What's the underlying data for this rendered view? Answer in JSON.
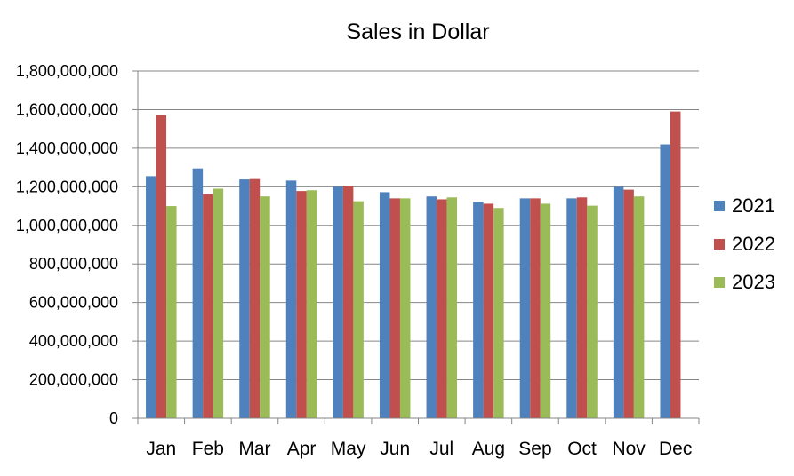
{
  "chart_data": {
    "type": "bar",
    "title": "Sales in Dollar",
    "xlabel": "",
    "ylabel": "",
    "ylim": [
      0,
      1800000000
    ],
    "yticks": [
      0,
      200000000,
      400000000,
      600000000,
      800000000,
      1000000000,
      1200000000,
      1400000000,
      1600000000,
      1800000000
    ],
    "ytick_labels": [
      "0",
      "200,000,000",
      "400,000,000",
      "600,000,000",
      "800,000,000",
      "1,000,000,000",
      "1,200,000,000",
      "1,400,000,000",
      "1,600,000,000",
      "1,800,000,000"
    ],
    "categories": [
      "Jan",
      "Feb",
      "Mar",
      "Apr",
      "May",
      "Jun",
      "Jul",
      "Aug",
      "Sep",
      "Oct",
      "Nov",
      "Dec"
    ],
    "grid": true,
    "legend_position": "right",
    "series": [
      {
        "name": "2021",
        "color": "#4F81BD",
        "values": [
          1255000000,
          1295000000,
          1238000000,
          1232000000,
          1200000000,
          1172000000,
          1150000000,
          1122000000,
          1140000000,
          1140000000,
          1200000000,
          1420000000
        ]
      },
      {
        "name": "2022",
        "color": "#C0504D",
        "values": [
          1572000000,
          1160000000,
          1240000000,
          1178000000,
          1205000000,
          1140000000,
          1135000000,
          1112000000,
          1140000000,
          1145000000,
          1185000000,
          1590000000
        ]
      },
      {
        "name": "2023",
        "color": "#9BBB59",
        "values": [
          1100000000,
          1190000000,
          1150000000,
          1182000000,
          1125000000,
          1140000000,
          1145000000,
          1090000000,
          1112000000,
          1102000000,
          1150000000,
          null
        ]
      }
    ]
  }
}
